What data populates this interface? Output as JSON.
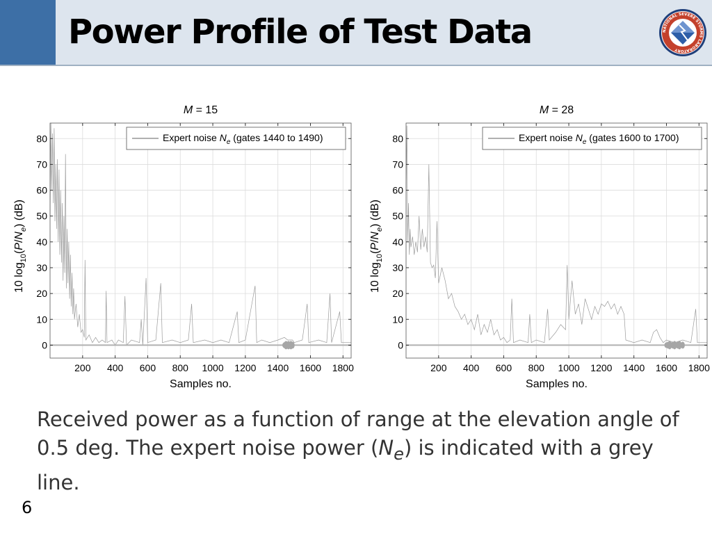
{
  "slide": {
    "title": "Power Profile of Test Data",
    "number": "6",
    "caption": {
      "part1": "Received power as a function of range at the elevation angle of 0.5 deg. The expert noise power (",
      "symbol": "N",
      "subscript": "e",
      "part2": ") is indicated with a grey line."
    },
    "logo_text": "NATIONAL SEVERE STORMS LABORATORY",
    "colors": {
      "header": "#dde5ee",
      "accent": "#3d6fa6",
      "trace": "#9a9a9a",
      "noise_line": "#b0b0b0"
    }
  },
  "chart_data": [
    {
      "type": "line",
      "title": {
        "symbol": "M",
        "text": " = 15"
      },
      "xlabel": "Samples no.",
      "ylabel": {
        "a": "10 log",
        "sub10": "10",
        "b": "(",
        "p": "P",
        "slash": "/",
        "n": "N",
        "e": "e",
        "c": ")  (dB)"
      },
      "xlim": [
        0,
        1850
      ],
      "ylim": [
        -5,
        86
      ],
      "xticks": [
        200,
        400,
        600,
        800,
        1000,
        1200,
        1400,
        1600,
        1800
      ],
      "yticks": [
        0,
        10,
        20,
        30,
        40,
        50,
        60,
        70,
        80
      ],
      "grid": true,
      "legend": {
        "position": "top-right",
        "label": {
          "a": "Expert noise ",
          "n": "N",
          "e": "e",
          "b": " (gates 1440 to 1490)"
        }
      },
      "noise_gates": [
        1440,
        1490
      ],
      "series": [
        {
          "values": [
            {
              "x": 0,
              "y": 50
            },
            {
              "x": 5,
              "y": 86
            },
            {
              "x": 10,
              "y": 60
            },
            {
              "x": 15,
              "y": 82
            },
            {
              "x": 20,
              "y": 55
            },
            {
              "x": 25,
              "y": 84
            },
            {
              "x": 30,
              "y": 48
            },
            {
              "x": 35,
              "y": 70
            },
            {
              "x": 40,
              "y": 45
            },
            {
              "x": 45,
              "y": 72
            },
            {
              "x": 50,
              "y": 40
            },
            {
              "x": 55,
              "y": 68
            },
            {
              "x": 60,
              "y": 35
            },
            {
              "x": 65,
              "y": 60
            },
            {
              "x": 70,
              "y": 32
            },
            {
              "x": 75,
              "y": 55
            },
            {
              "x": 80,
              "y": 25
            },
            {
              "x": 85,
              "y": 50
            },
            {
              "x": 90,
              "y": 28
            },
            {
              "x": 95,
              "y": 74
            },
            {
              "x": 100,
              "y": 22
            },
            {
              "x": 105,
              "y": 45
            },
            {
              "x": 110,
              "y": 24
            },
            {
              "x": 115,
              "y": 40
            },
            {
              "x": 120,
              "y": 18
            },
            {
              "x": 125,
              "y": 35
            },
            {
              "x": 130,
              "y": 15
            },
            {
              "x": 135,
              "y": 28
            },
            {
              "x": 140,
              "y": 12
            },
            {
              "x": 145,
              "y": 22
            },
            {
              "x": 150,
              "y": 10
            },
            {
              "x": 160,
              "y": 16
            },
            {
              "x": 170,
              "y": 7
            },
            {
              "x": 180,
              "y": 12
            },
            {
              "x": 190,
              "y": 5
            },
            {
              "x": 200,
              "y": 6
            },
            {
              "x": 210,
              "y": 3
            },
            {
              "x": 215,
              "y": 33
            },
            {
              "x": 220,
              "y": 2
            },
            {
              "x": 240,
              "y": 4
            },
            {
              "x": 260,
              "y": 1
            },
            {
              "x": 280,
              "y": 3
            },
            {
              "x": 300,
              "y": 1
            },
            {
              "x": 320,
              "y": 2
            },
            {
              "x": 340,
              "y": 1
            },
            {
              "x": 345,
              "y": 21
            },
            {
              "x": 350,
              "y": 1
            },
            {
              "x": 380,
              "y": 2
            },
            {
              "x": 400,
              "y": 0
            },
            {
              "x": 420,
              "y": 2
            },
            {
              "x": 450,
              "y": 1
            },
            {
              "x": 460,
              "y": 19
            },
            {
              "x": 470,
              "y": 0
            },
            {
              "x": 500,
              "y": 2
            },
            {
              "x": 550,
              "y": 1
            },
            {
              "x": 560,
              "y": 10
            },
            {
              "x": 570,
              "y": 0
            },
            {
              "x": 590,
              "y": 26
            },
            {
              "x": 600,
              "y": 1
            },
            {
              "x": 650,
              "y": 2
            },
            {
              "x": 680,
              "y": 24
            },
            {
              "x": 690,
              "y": 1
            },
            {
              "x": 750,
              "y": 2
            },
            {
              "x": 800,
              "y": 1
            },
            {
              "x": 850,
              "y": 2
            },
            {
              "x": 870,
              "y": 16
            },
            {
              "x": 880,
              "y": 1
            },
            {
              "x": 950,
              "y": 2
            },
            {
              "x": 1000,
              "y": 1
            },
            {
              "x": 1050,
              "y": 2
            },
            {
              "x": 1100,
              "y": 1
            },
            {
              "x": 1150,
              "y": 13
            },
            {
              "x": 1160,
              "y": 1
            },
            {
              "x": 1200,
              "y": 2
            },
            {
              "x": 1260,
              "y": 23
            },
            {
              "x": 1270,
              "y": 1
            },
            {
              "x": 1300,
              "y": 2
            },
            {
              "x": 1350,
              "y": 1
            },
            {
              "x": 1400,
              "y": 2
            },
            {
              "x": 1440,
              "y": 3
            },
            {
              "x": 1460,
              "y": 2
            },
            {
              "x": 1490,
              "y": 2
            },
            {
              "x": 1500,
              "y": 1
            },
            {
              "x": 1550,
              "y": 2
            },
            {
              "x": 1580,
              "y": 16
            },
            {
              "x": 1590,
              "y": 1
            },
            {
              "x": 1650,
              "y": 2
            },
            {
              "x": 1700,
              "y": 1
            },
            {
              "x": 1720,
              "y": 20
            },
            {
              "x": 1730,
              "y": 1
            },
            {
              "x": 1780,
              "y": 13
            },
            {
              "x": 1790,
              "y": 1
            },
            {
              "x": 1850,
              "y": 1
            }
          ]
        }
      ]
    },
    {
      "type": "line",
      "title": {
        "symbol": "M",
        "text": " = 28"
      },
      "xlabel": "Samples no.",
      "ylabel": {
        "a": "10 log",
        "sub10": "10",
        "b": "(",
        "p": "P",
        "slash": "/",
        "n": "N",
        "e": "e",
        "c": ")  (dB)"
      },
      "xlim": [
        0,
        1850
      ],
      "ylim": [
        -5,
        86
      ],
      "xticks": [
        200,
        400,
        600,
        800,
        1000,
        1200,
        1400,
        1600,
        1800
      ],
      "yticks": [
        0,
        10,
        20,
        30,
        40,
        50,
        60,
        70,
        80
      ],
      "grid": true,
      "legend": {
        "position": "top-right",
        "label": {
          "a": "Expert noise ",
          "n": "N",
          "e": "e",
          "b": " (gates 1600 to 1700)"
        }
      },
      "noise_gates": [
        1600,
        1700
      ],
      "series": [
        {
          "values": [
            {
              "x": 0,
              "y": 60
            },
            {
              "x": 5,
              "y": 85
            },
            {
              "x": 10,
              "y": 40
            },
            {
              "x": 15,
              "y": 55
            },
            {
              "x": 20,
              "y": 35
            },
            {
              "x": 25,
              "y": 45
            },
            {
              "x": 30,
              "y": 38
            },
            {
              "x": 40,
              "y": 42
            },
            {
              "x": 50,
              "y": 35
            },
            {
              "x": 60,
              "y": 40
            },
            {
              "x": 70,
              "y": 36
            },
            {
              "x": 80,
              "y": 50
            },
            {
              "x": 90,
              "y": 37
            },
            {
              "x": 100,
              "y": 45
            },
            {
              "x": 110,
              "y": 38
            },
            {
              "x": 120,
              "y": 42
            },
            {
              "x": 130,
              "y": 36
            },
            {
              "x": 140,
              "y": 70
            },
            {
              "x": 150,
              "y": 32
            },
            {
              "x": 160,
              "y": 30
            },
            {
              "x": 170,
              "y": 31
            },
            {
              "x": 180,
              "y": 26
            },
            {
              "x": 190,
              "y": 48
            },
            {
              "x": 200,
              "y": 24
            },
            {
              "x": 220,
              "y": 30
            },
            {
              "x": 240,
              "y": 25
            },
            {
              "x": 260,
              "y": 18
            },
            {
              "x": 280,
              "y": 20
            },
            {
              "x": 300,
              "y": 15
            },
            {
              "x": 320,
              "y": 13
            },
            {
              "x": 340,
              "y": 10
            },
            {
              "x": 360,
              "y": 12
            },
            {
              "x": 380,
              "y": 8
            },
            {
              "x": 400,
              "y": 10
            },
            {
              "x": 420,
              "y": 6
            },
            {
              "x": 440,
              "y": 12
            },
            {
              "x": 460,
              "y": 4
            },
            {
              "x": 480,
              "y": 8
            },
            {
              "x": 500,
              "y": 5
            },
            {
              "x": 520,
              "y": 10
            },
            {
              "x": 540,
              "y": 4
            },
            {
              "x": 560,
              "y": 6
            },
            {
              "x": 580,
              "y": 2
            },
            {
              "x": 600,
              "y": 3
            },
            {
              "x": 620,
              "y": 1
            },
            {
              "x": 640,
              "y": 2
            },
            {
              "x": 650,
              "y": 18
            },
            {
              "x": 660,
              "y": 1
            },
            {
              "x": 700,
              "y": 2
            },
            {
              "x": 750,
              "y": 1
            },
            {
              "x": 760,
              "y": 12
            },
            {
              "x": 770,
              "y": 1
            },
            {
              "x": 800,
              "y": 2
            },
            {
              "x": 850,
              "y": 1
            },
            {
              "x": 870,
              "y": 14
            },
            {
              "x": 880,
              "y": 2
            },
            {
              "x": 920,
              "y": 5
            },
            {
              "x": 950,
              "y": 8
            },
            {
              "x": 980,
              "y": 6
            },
            {
              "x": 990,
              "y": 31
            },
            {
              "x": 1000,
              "y": 10
            },
            {
              "x": 1020,
              "y": 25
            },
            {
              "x": 1040,
              "y": 12
            },
            {
              "x": 1060,
              "y": 16
            },
            {
              "x": 1080,
              "y": 8
            },
            {
              "x": 1100,
              "y": 18
            },
            {
              "x": 1120,
              "y": 14
            },
            {
              "x": 1140,
              "y": 10
            },
            {
              "x": 1160,
              "y": 15
            },
            {
              "x": 1180,
              "y": 12
            },
            {
              "x": 1200,
              "y": 16
            },
            {
              "x": 1220,
              "y": 15
            },
            {
              "x": 1240,
              "y": 17
            },
            {
              "x": 1260,
              "y": 14
            },
            {
              "x": 1280,
              "y": 16
            },
            {
              "x": 1300,
              "y": 12
            },
            {
              "x": 1320,
              "y": 15
            },
            {
              "x": 1340,
              "y": 12
            },
            {
              "x": 1350,
              "y": 2
            },
            {
              "x": 1400,
              "y": 1
            },
            {
              "x": 1450,
              "y": 2
            },
            {
              "x": 1500,
              "y": 1
            },
            {
              "x": 1520,
              "y": 5
            },
            {
              "x": 1540,
              "y": 6
            },
            {
              "x": 1560,
              "y": 3
            },
            {
              "x": 1580,
              "y": 1
            },
            {
              "x": 1600,
              "y": 2
            },
            {
              "x": 1650,
              "y": 1
            },
            {
              "x": 1700,
              "y": 2
            },
            {
              "x": 1750,
              "y": 1
            },
            {
              "x": 1780,
              "y": 14
            },
            {
              "x": 1790,
              "y": 1
            },
            {
              "x": 1850,
              "y": 1
            }
          ]
        }
      ]
    }
  ]
}
